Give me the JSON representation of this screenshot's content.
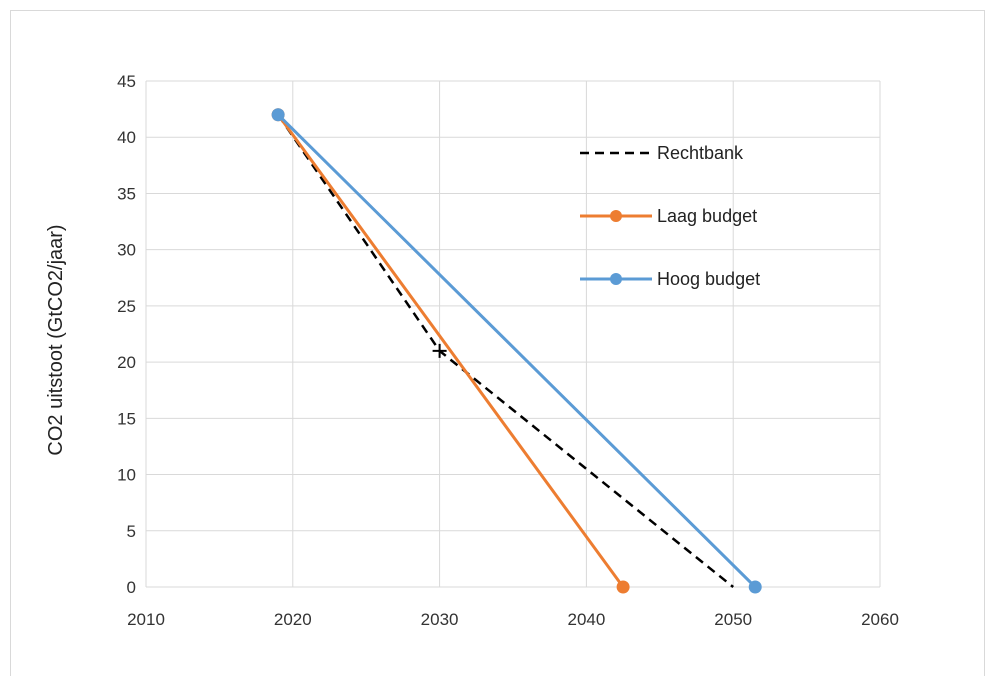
{
  "chart_data": {
    "type": "line",
    "title": "",
    "xlabel": "",
    "ylabel": "CO2 uitstoot (GtCO2/jaar)",
    "xlim": [
      2010,
      2060
    ],
    "ylim": [
      0,
      45
    ],
    "x_ticks": [
      "2010",
      "2020",
      "2030",
      "2040",
      "2050",
      "2060"
    ],
    "y_ticks": [
      "0",
      "5",
      "10",
      "15",
      "20",
      "25",
      "30",
      "35",
      "40",
      "45"
    ],
    "grid": true,
    "legend_position": "top-right",
    "series": [
      {
        "name": "Rechtbank",
        "style": "dashed",
        "color": "#000000",
        "points": [
          [
            2019,
            42
          ],
          [
            2030,
            21
          ],
          [
            2050,
            0
          ]
        ],
        "marker_note": "+ marker at 2030"
      },
      {
        "name": "Laag budget",
        "style": "solid",
        "color": "#ed7d31",
        "points": [
          [
            2019,
            42
          ],
          [
            2042.5,
            0
          ]
        ]
      },
      {
        "name": "Hoog budget",
        "style": "solid",
        "color": "#5b9bd5",
        "points": [
          [
            2019,
            42
          ],
          [
            2051.5,
            0
          ]
        ]
      }
    ]
  }
}
